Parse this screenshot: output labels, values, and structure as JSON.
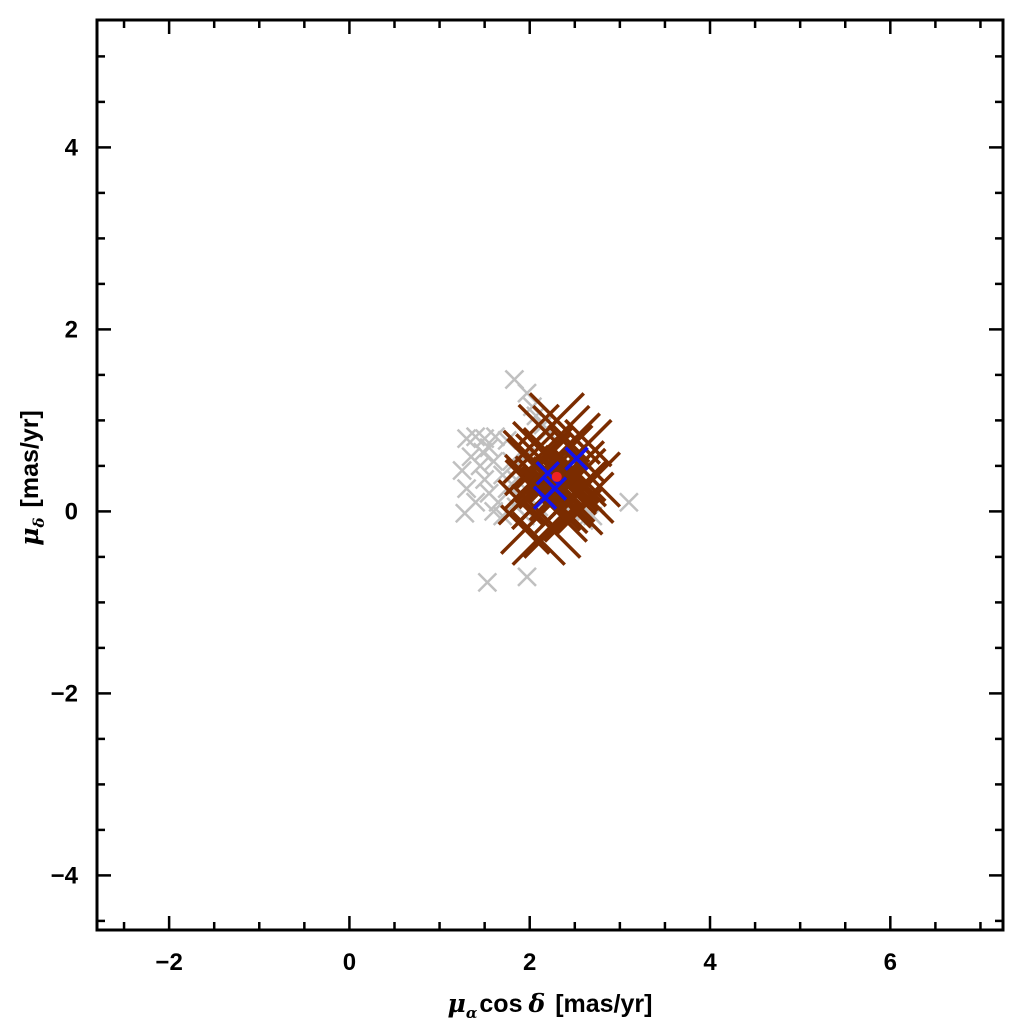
{
  "chart_data": {
    "type": "scatter",
    "title": "",
    "xlabel": {
      "mu": "μ",
      "sub": "α",
      "cos": "cos",
      "delta": "δ",
      "unit": "[mas/yr]"
    },
    "ylabel": {
      "mu": "μ",
      "sub": "δ",
      "unit": "[mas/yr]"
    },
    "xlim": [
      -2.8,
      7.25
    ],
    "ylim": [
      -4.6,
      5.4
    ],
    "xticks": [
      -2,
      0,
      2,
      4,
      6
    ],
    "yticks": [
      -4,
      -2,
      0,
      2,
      4
    ],
    "xtick_labels": [
      "−2",
      "0",
      "2",
      "4",
      "6"
    ],
    "ytick_labels": [
      "−4",
      "−2",
      "0",
      "2",
      "4"
    ],
    "grid": false,
    "legend": "none",
    "series": [
      {
        "color": "#c0c0c0",
        "marker": "x",
        "points": [
          [
            1.83,
            1.45
          ],
          [
            1.97,
            1.3
          ],
          [
            2.03,
            1.15
          ],
          [
            2.07,
            1.05
          ],
          [
            2.15,
            0.95
          ],
          [
            2.2,
            0.88
          ],
          [
            1.3,
            0.8
          ],
          [
            1.4,
            0.82
          ],
          [
            1.5,
            0.8
          ],
          [
            1.62,
            0.82
          ],
          [
            1.75,
            0.78
          ],
          [
            1.55,
            0.7
          ],
          [
            1.25,
            0.45
          ],
          [
            1.35,
            0.6
          ],
          [
            1.45,
            0.5
          ],
          [
            1.3,
            0.25
          ],
          [
            1.4,
            0.1
          ],
          [
            1.28,
            -0.02
          ],
          [
            1.5,
            0.35
          ],
          [
            1.6,
            0.55
          ],
          [
            1.7,
            0.4
          ],
          [
            1.55,
            0.2
          ],
          [
            1.65,
            0.1
          ],
          [
            1.75,
            0.25
          ],
          [
            1.8,
            0.55
          ],
          [
            1.85,
            0.35
          ],
          [
            1.9,
            0.15
          ],
          [
            1.6,
            0.0
          ],
          [
            1.7,
            -0.05
          ],
          [
            1.85,
            0.05
          ],
          [
            1.95,
            0.6
          ],
          [
            2.0,
            0.3
          ],
          [
            1.95,
            -0.05
          ],
          [
            2.1,
            0.05
          ],
          [
            2.45,
            0.0
          ],
          [
            2.55,
            0.05
          ],
          [
            2.6,
            -0.1
          ],
          [
            2.7,
            -0.05
          ],
          [
            3.1,
            0.1
          ],
          [
            1.53,
            -0.78
          ],
          [
            1.97,
            -0.72
          ],
          [
            1.48,
            0.65
          ]
        ]
      },
      {
        "color": "#7b2c00",
        "marker": "x",
        "points": [
          [
            2.1,
            0.95
          ],
          [
            2.3,
            1.0
          ],
          [
            2.5,
            0.8
          ],
          [
            2.65,
            0.75
          ],
          [
            2.05,
            0.75
          ],
          [
            2.35,
            0.85
          ],
          [
            2.0,
            0.6
          ],
          [
            2.2,
            0.65
          ],
          [
            2.45,
            0.7
          ],
          [
            2.6,
            0.55
          ],
          [
            2.7,
            0.35
          ],
          [
            2.65,
            0.15
          ],
          [
            2.55,
            0.0
          ],
          [
            2.4,
            -0.1
          ],
          [
            2.25,
            -0.2
          ],
          [
            2.1,
            -0.3
          ],
          [
            1.95,
            -0.2
          ],
          [
            1.9,
            0.1
          ],
          [
            1.95,
            0.4
          ],
          [
            2.05,
            0.5
          ],
          [
            2.15,
            0.45
          ],
          [
            2.25,
            0.55
          ],
          [
            2.35,
            0.45
          ],
          [
            2.45,
            0.4
          ],
          [
            2.55,
            0.4
          ],
          [
            2.15,
            0.3
          ],
          [
            2.25,
            0.35
          ],
          [
            2.35,
            0.25
          ],
          [
            2.45,
            0.3
          ],
          [
            2.55,
            0.25
          ],
          [
            2.05,
            0.25
          ],
          [
            2.15,
            0.15
          ],
          [
            2.25,
            0.1
          ],
          [
            2.35,
            0.05
          ],
          [
            2.45,
            0.15
          ],
          [
            2.05,
            0.05
          ],
          [
            2.2,
            0.4
          ],
          [
            2.3,
            0.2
          ],
          [
            2.4,
            0.1
          ],
          [
            2.1,
            0.35
          ],
          [
            2.5,
            0.2
          ],
          [
            2.3,
            0.4
          ],
          [
            2.2,
            0.2
          ],
          [
            2.0,
            0.3
          ],
          [
            2.6,
            0.3
          ],
          [
            2.4,
            0.5
          ],
          [
            2.15,
            0.55
          ],
          [
            2.32,
            0.32
          ]
        ]
      },
      {
        "color": "#1212ee",
        "marker": "x",
        "points": [
          [
            2.2,
            0.42
          ],
          [
            2.52,
            0.58
          ],
          [
            2.17,
            0.15
          ],
          [
            2.28,
            0.25
          ]
        ]
      },
      {
        "color": "#ee2222",
        "marker": "dot",
        "points": [
          [
            2.3,
            0.38
          ]
        ]
      }
    ]
  }
}
